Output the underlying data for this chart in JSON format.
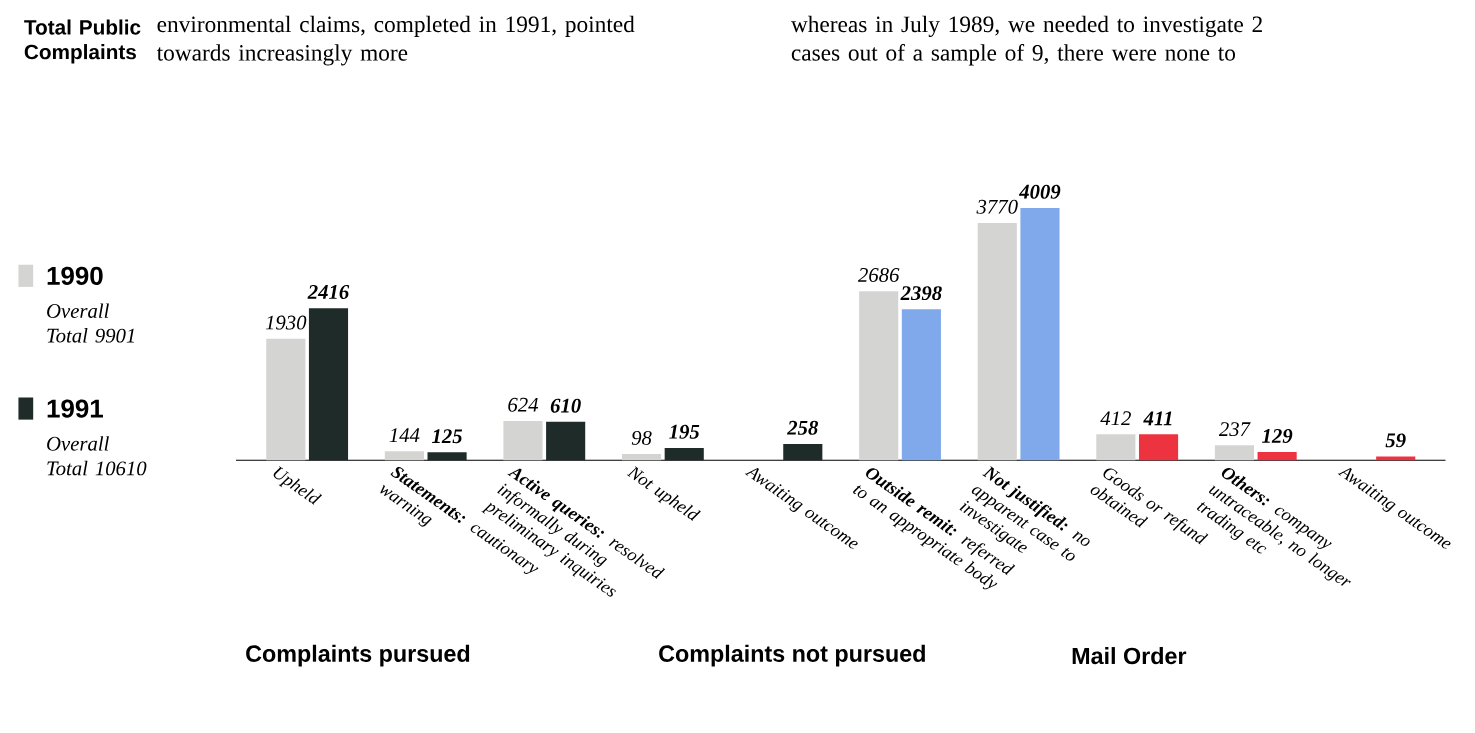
{
  "chart_data": {
    "type": "bar",
    "title": "Total Public Complaints",
    "categories": [
      "Upheld",
      "**Statements:** cautionary warning",
      "**Active queries:** resolved informally during preliminary inquiries",
      "Not upheld",
      "Awaiting outcome",
      "**Outside remit:** referred to an appropriate body",
      "**Not justified:** no apparent case to investigate",
      "Goods or refund obtained",
      "**Others:** company untraceable, no longer trading etc",
      "Awaiting outcome"
    ],
    "series": [
      {
        "name": "1990",
        "color": "#d4d4d2",
        "values": [
          1930,
          144,
          624,
          98,
          null,
          2686,
          3770,
          412,
          237,
          null
        ]
      },
      {
        "name": "1991",
        "color": "#1e2b29",
        "colors": [
          "#1e2b29",
          "#1e2b29",
          "#1e2b29",
          "#1e2b29",
          "#1e2b29",
          "#7fa9ea",
          "#7fa9ea",
          "#ee3340",
          "#ee3340",
          "#ee3340"
        ],
        "values": [
          2416,
          125,
          610,
          195,
          258,
          2398,
          4009,
          411,
          129,
          59
        ]
      }
    ],
    "data_labels": true,
    "legend": "left",
    "annotations": [
      "Overall Total 9901",
      "Overall Total 10610",
      "Complaints pursued",
      "Complaints not pursued",
      "Mail Order",
      "environmental claims, completed in 1991, pointed towards increasingly more",
      "whereas in July 1989, we needed to investigate 2 cases out of a sample of 9, there were none to"
    ]
  }
}
